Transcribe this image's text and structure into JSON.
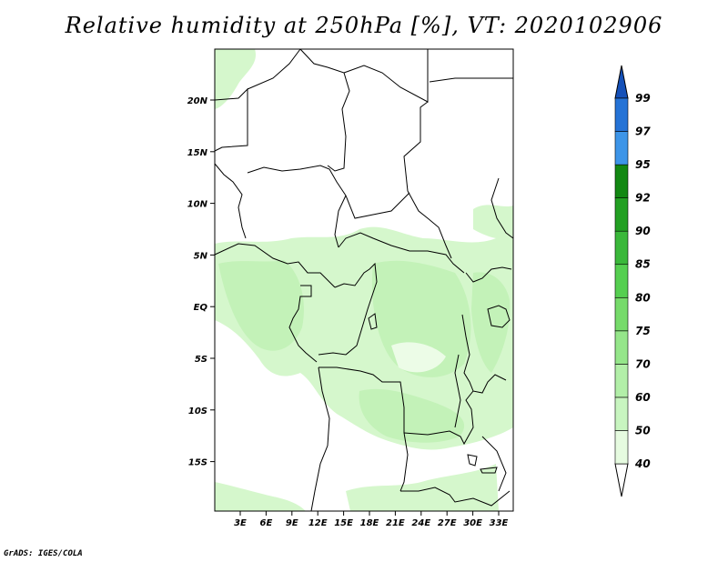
{
  "title": "Relative humidity at 250hPa [%], VT: 2020102906",
  "credit": "GrADS: IGES/COLA",
  "map": {
    "lon_ticks": [
      "3E",
      "6E",
      "9E",
      "12E",
      "15E",
      "18E",
      "21E",
      "24E",
      "27E",
      "30E",
      "33E"
    ],
    "lat_ticks": [
      "20N",
      "15N",
      "10N",
      "5N",
      "EQ",
      "5S",
      "10S",
      "15S"
    ]
  },
  "colorbar": {
    "levels": [
      "40",
      "50",
      "60",
      "70",
      "75",
      "80",
      "85",
      "90",
      "92",
      "95",
      "97",
      "99"
    ],
    "colors": [
      "#ffffff",
      "#e6fbe0",
      "#c8f5c0",
      "#b2efa8",
      "#95e68a",
      "#76db6a",
      "#55cf50",
      "#3ab83a",
      "#22a022",
      "#128812",
      "#3d95e8",
      "#2573d6",
      "#1450b8"
    ]
  },
  "moist_band_color": "#c8f5c0",
  "border_color": "#000000"
}
